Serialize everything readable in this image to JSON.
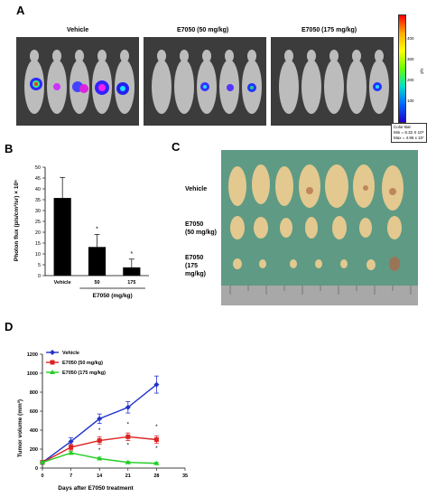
{
  "panelA": {
    "letter": "A",
    "groups": [
      "Vehicle",
      "E7050 (50 mg/kg)",
      "E7050 (175 mg/kg)"
    ],
    "colorbar": {
      "ticks": [
        "400",
        "300",
        "200",
        "100"
      ],
      "unit": "p/s",
      "title": "Color Bar",
      "min": "Min = 8.32 X 10⁵",
      "max": "Max = 4.96 x 10⁷"
    }
  },
  "panelB": {
    "letter": "B",
    "chart_data": {
      "type": "bar",
      "categories": [
        "Vehicle",
        "50",
        "175"
      ],
      "values": [
        35.8,
        13.2,
        3.8
      ],
      "errors": [
        9.5,
        5.8,
        3.8
      ],
      "significance": [
        "",
        "*",
        "*"
      ],
      "ylabel": "Photon flux (p/s/cm²/sr) × 10⁶",
      "xlabel": "E7050 (mg/kg)",
      "ylim": [
        0,
        50
      ],
      "yticks": [
        0,
        5,
        10,
        15,
        20,
        25,
        30,
        35,
        40,
        45,
        50
      ]
    }
  },
  "panelC": {
    "letter": "C",
    "rows": [
      "Vehicle",
      "E7050\n(50 mg/kg)",
      "E7050\n(175\nmg/kg)"
    ]
  },
  "panelD": {
    "letter": "D",
    "chart_data": {
      "type": "line",
      "x": [
        0,
        7,
        14,
        21,
        28
      ],
      "series": [
        {
          "name": "Vehicle",
          "color": "#2233cc",
          "values": [
            60,
            280,
            520,
            640,
            880
          ],
          "errors": [
            20,
            40,
            50,
            60,
            90
          ]
        },
        {
          "name": "E7050 (50 mg/kg)",
          "color": "#dd2222",
          "values": [
            60,
            220,
            290,
            330,
            300
          ],
          "errors": [
            15,
            30,
            40,
            40,
            40
          ]
        },
        {
          "name": "E7050 (175 mg/kg)",
          "color": "#22cc22",
          "values": [
            60,
            160,
            100,
            60,
            50
          ],
          "errors": [
            10,
            15,
            15,
            10,
            10
          ]
        }
      ],
      "significance_marks": [
        "*",
        "*",
        "*",
        "*",
        "*",
        "*"
      ],
      "xlabel": "Days after E7050 treatment",
      "ylabel": "Tumor volume (mm³)",
      "xticks": [
        0,
        7,
        14,
        21,
        28,
        35
      ],
      "yticks": [
        0,
        200,
        400,
        600,
        800,
        1000,
        1200
      ],
      "xlim": [
        0,
        35
      ],
      "ylim": [
        0,
        1200
      ]
    }
  }
}
